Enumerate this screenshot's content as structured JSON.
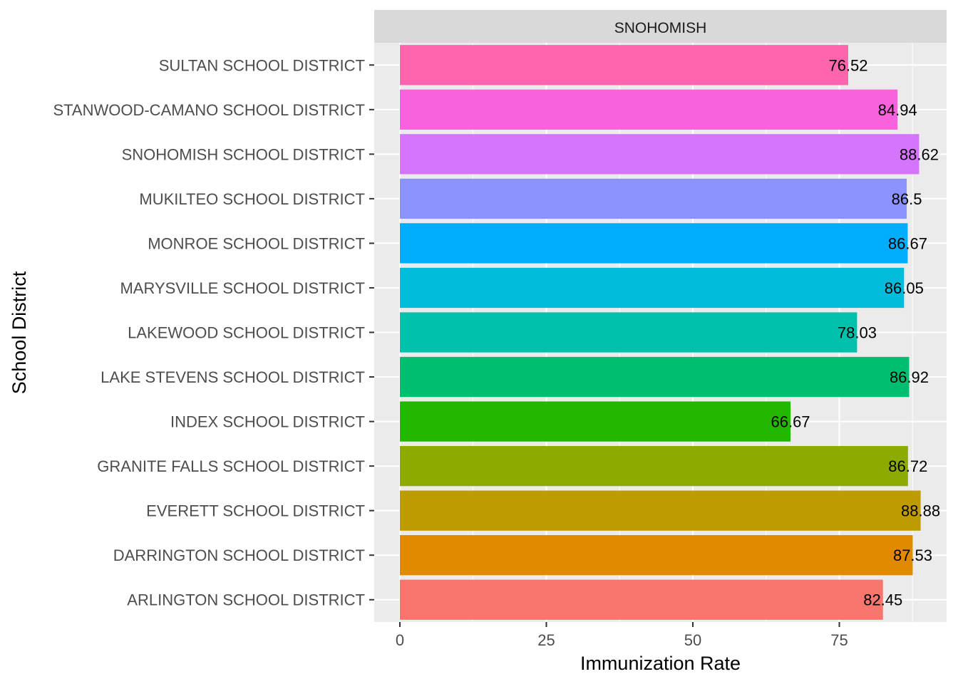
{
  "chart_data": {
    "type": "bar",
    "orientation": "horizontal",
    "facet_label": "SNOHOMISH",
    "xlabel": "Immunization Rate",
    "ylabel": "School District",
    "xlim": [
      0,
      92.5
    ],
    "x_ticks": [
      0,
      25,
      50,
      75
    ],
    "x_tick_labels": [
      "0",
      "25",
      "50",
      "75"
    ],
    "grid": true,
    "legend": "none",
    "categories": [
      "ARLINGTON SCHOOL DISTRICT",
      "DARRINGTON SCHOOL DISTRICT",
      "EVERETT SCHOOL DISTRICT",
      "GRANITE FALLS SCHOOL DISTRICT",
      "INDEX SCHOOL DISTRICT",
      "LAKE STEVENS SCHOOL DISTRICT",
      "LAKEWOOD SCHOOL DISTRICT",
      "MARYSVILLE SCHOOL DISTRICT",
      "MONROE SCHOOL DISTRICT",
      "MUKILTEO SCHOOL DISTRICT",
      "SNOHOMISH SCHOOL DISTRICT",
      "STANWOOD-CAMANO SCHOOL DISTRICT",
      "SULTAN SCHOOL DISTRICT"
    ],
    "values": [
      82.45,
      87.53,
      88.88,
      86.72,
      66.67,
      86.92,
      78.03,
      86.05,
      86.67,
      86.5,
      88.62,
      84.94,
      76.52
    ],
    "value_labels": [
      "82.45",
      "87.53",
      "88.88",
      "86.72",
      "66.67",
      "86.92",
      "78.03",
      "86.05",
      "86.67",
      "86.5",
      "88.62",
      "84.94",
      "76.52"
    ],
    "colors": [
      "#F8766D",
      "#E18A00",
      "#BE9C00",
      "#8CAB00",
      "#24B700",
      "#00BE70",
      "#00C1AB",
      "#00BBDA",
      "#00ACFC",
      "#8B93FF",
      "#D575FE",
      "#F962DD",
      "#FF65AC"
    ]
  }
}
